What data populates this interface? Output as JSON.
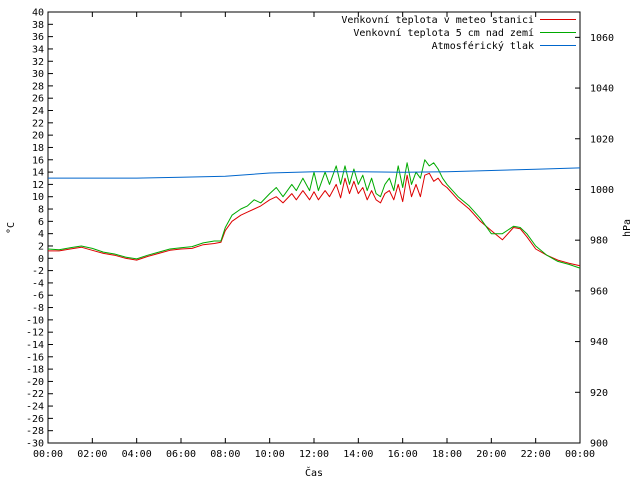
{
  "chart_data": {
    "type": "line",
    "xlabel": "Čas",
    "ylabel": "°C",
    "y2label": "hPa",
    "x_ticks": [
      "00:00",
      "02:00",
      "04:00",
      "06:00",
      "08:00",
      "10:00",
      "12:00",
      "14:00",
      "16:00",
      "18:00",
      "20:00",
      "22:00",
      "00:00"
    ],
    "xlim": [
      0,
      24
    ],
    "ylim": [
      -30,
      40
    ],
    "y_ticks": [
      40,
      38,
      36,
      34,
      32,
      30,
      28,
      26,
      24,
      22,
      20,
      18,
      16,
      14,
      12,
      10,
      8,
      6,
      4,
      2,
      0,
      -2,
      -4,
      -6,
      -8,
      -10,
      -12,
      -14,
      -16,
      -18,
      -20,
      -22,
      -24,
      -26,
      -28,
      -30
    ],
    "y2lim": [
      900,
      1070
    ],
    "y2_ticks": [
      1060,
      1040,
      1020,
      1000,
      980,
      960,
      940,
      920,
      900
    ],
    "grid": false,
    "legend_position": "top-right",
    "series": [
      {
        "name": "Venkovní teplota v meteo stanici",
        "color": "#dd0000",
        "axis": "left",
        "x": [
          0,
          0.5,
          1,
          1.5,
          2,
          2.5,
          3,
          3.5,
          4,
          4.5,
          5,
          5.5,
          6,
          6.5,
          7,
          7.5,
          7.8,
          8,
          8.3,
          8.7,
          9,
          9.3,
          9.6,
          10,
          10.3,
          10.6,
          11,
          11.2,
          11.5,
          11.8,
          12,
          12.2,
          12.5,
          12.7,
          13,
          13.2,
          13.4,
          13.6,
          13.8,
          14,
          14.2,
          14.4,
          14.6,
          14.8,
          15,
          15.2,
          15.4,
          15.6,
          15.8,
          16,
          16.2,
          16.4,
          16.6,
          16.8,
          17,
          17.2,
          17.4,
          17.6,
          17.8,
          18,
          18.5,
          19,
          19.5,
          20,
          20.5,
          21,
          21.3,
          21.6,
          22,
          22.5,
          23,
          23.5,
          24
        ],
        "y": [
          1.2,
          1.2,
          1.5,
          1.8,
          1.3,
          0.8,
          0.5,
          0,
          -0.3,
          0.3,
          0.8,
          1.3,
          1.5,
          1.6,
          2.2,
          2.4,
          2.6,
          4.5,
          6,
          7,
          7.5,
          8,
          8.5,
          9.5,
          10,
          9,
          10.5,
          9.5,
          11,
          9.5,
          10.8,
          9.5,
          11,
          10,
          12,
          9.8,
          13,
          10.5,
          12.5,
          10.5,
          11.5,
          9.5,
          11,
          9.5,
          9,
          10.5,
          11,
          9.5,
          12,
          9.2,
          13.5,
          10,
          12,
          10,
          13.5,
          13.8,
          12.5,
          13,
          12,
          11.5,
          9.5,
          8,
          6,
          4.5,
          3,
          5,
          4.8,
          3.5,
          1.5,
          0.5,
          -0.3,
          -0.8,
          -1.2
        ]
      },
      {
        "name": "Venkovní teplota 5 cm nad zemí",
        "color": "#00aa00",
        "axis": "left",
        "x": [
          0,
          0.5,
          1,
          1.5,
          2,
          2.5,
          3,
          3.5,
          4,
          4.5,
          5,
          5.5,
          6,
          6.5,
          7,
          7.5,
          7.8,
          8,
          8.3,
          8.7,
          9,
          9.3,
          9.6,
          10,
          10.3,
          10.6,
          11,
          11.2,
          11.5,
          11.8,
          12,
          12.2,
          12.5,
          12.7,
          13,
          13.2,
          13.4,
          13.6,
          13.8,
          14,
          14.2,
          14.4,
          14.6,
          14.8,
          15,
          15.2,
          15.4,
          15.6,
          15.8,
          16,
          16.2,
          16.4,
          16.6,
          16.8,
          17,
          17.2,
          17.4,
          17.6,
          17.8,
          18,
          18.5,
          19,
          19.5,
          20,
          20.5,
          21,
          21.3,
          21.6,
          22,
          22.5,
          23,
          23.5,
          24
        ],
        "y": [
          1.5,
          1.4,
          1.7,
          2,
          1.6,
          1,
          0.7,
          0.2,
          -0.1,
          0.5,
          1,
          1.5,
          1.7,
          1.9,
          2.5,
          2.8,
          2.8,
          5,
          7,
          8,
          8.5,
          9.5,
          9,
          10.5,
          11.5,
          10,
          12,
          11,
          13,
          11,
          14,
          11,
          14,
          12,
          15,
          12,
          15,
          12,
          14.5,
          12,
          13.5,
          11,
          13,
          10.5,
          10,
          12,
          13,
          11,
          15,
          11.5,
          15.5,
          12,
          14,
          13,
          16,
          15,
          15.5,
          14.5,
          13,
          12,
          10,
          8.5,
          6.5,
          4,
          4,
          5.2,
          5,
          4,
          2,
          0.5,
          -0.5,
          -1,
          -1.6
        ]
      },
      {
        "name": "Atmosférický tlak",
        "color": "#0066cc",
        "axis": "right",
        "x": [
          0,
          2,
          4,
          6,
          8,
          10,
          12,
          14,
          16,
          18,
          20,
          22,
          24
        ],
        "y": [
          1004.5,
          1004.5,
          1004.5,
          1004.8,
          1005.2,
          1006.5,
          1007,
          1007,
          1006.8,
          1007,
          1007.5,
          1008,
          1008.5
        ]
      }
    ]
  }
}
